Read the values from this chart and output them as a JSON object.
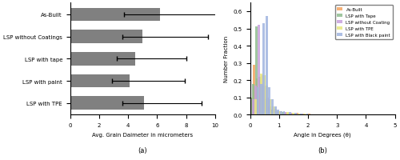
{
  "bar_labels": [
    "LSP with TPE",
    "LSP with paint",
    "LSP with tape",
    "LSP without Coatings",
    "As-Built"
  ],
  "bar_values": [
    5.1,
    4.1,
    4.5,
    5.0,
    6.2
  ],
  "bar_xerr_low": [
    1.5,
    1.2,
    1.3,
    1.4,
    2.5
  ],
  "bar_xerr_high": [
    4.0,
    3.8,
    3.5,
    4.5,
    4.0
  ],
  "bar_color": "#808080",
  "bar_xlabel": "Avg. Grain Daimeter in micrometers",
  "bar_sublabel": "(a)",
  "hist_xlabel": "Angle in Degrees (θ)",
  "hist_ylabel": "Number Fraction",
  "hist_sublabel": "(b)",
  "hist_legend_labels": [
    "As-Built",
    "LSP with Tape",
    "LSP without Coating",
    "LSP with TPE",
    "LSP with Black paint"
  ],
  "hist_colors": [
    "#f4a460",
    "#8fbc8f",
    "#c8a0dc",
    "#e8e880",
    "#a0b4e0"
  ],
  "hist_xlim": [
    0,
    5
  ],
  "hist_ylim": [
    0,
    0.65
  ],
  "hist_yticks": [
    0.0,
    0.1,
    0.2,
    0.3,
    0.4,
    0.5,
    0.6
  ],
  "hist_xticks": [
    0,
    1,
    2,
    3,
    4,
    5
  ],
  "hist_data": {
    "As-Built": {
      "x": [
        0.1,
        0.2,
        0.3,
        0.4,
        0.5,
        0.6,
        0.7,
        0.8,
        0.9,
        1.0,
        1.2,
        1.4,
        1.6,
        1.8,
        2.0,
        2.2,
        2.5,
        3.0
      ],
      "y": [
        0.09,
        0.1,
        0.29,
        0.21,
        0.2,
        0.12,
        0.08,
        0.04,
        0.03,
        0.02,
        0.02,
        0.01,
        0.01,
        0.01,
        0.005,
        0.005,
        0.003,
        0.002
      ]
    },
    "LSP with Tape": {
      "x": [
        0.1,
        0.2,
        0.3,
        0.4,
        0.5,
        0.6,
        0.7,
        0.8,
        0.9,
        1.0,
        1.2,
        1.4,
        1.6,
        1.8,
        2.0,
        2.2,
        2.5,
        3.0
      ],
      "y": [
        0.1,
        0.18,
        0.51,
        0.22,
        0.17,
        0.09,
        0.05,
        0.03,
        0.02,
        0.02,
        0.015,
        0.01,
        0.008,
        0.005,
        0.003,
        0.003,
        0.002,
        0.001
      ]
    },
    "LSP without Coating": {
      "x": [
        0.1,
        0.2,
        0.3,
        0.4,
        0.5,
        0.6,
        0.7,
        0.8,
        0.9,
        1.0,
        1.2,
        1.4,
        1.6,
        1.8,
        2.0,
        2.2,
        2.5,
        3.0
      ],
      "y": [
        0.09,
        0.17,
        0.52,
        0.23,
        0.17,
        0.1,
        0.05,
        0.03,
        0.02,
        0.02,
        0.015,
        0.01,
        0.008,
        0.005,
        0.003,
        0.003,
        0.002,
        0.001
      ]
    },
    "LSP with TPE": {
      "x": [
        0.1,
        0.2,
        0.3,
        0.4,
        0.5,
        0.6,
        0.7,
        0.8,
        0.9,
        1.0,
        1.2,
        1.4,
        1.6,
        1.8,
        2.0,
        2.2,
        2.5,
        3.0
      ],
      "y": [
        0.09,
        0.16,
        0.24,
        0.23,
        0.17,
        0.09,
        0.05,
        0.035,
        0.02,
        0.02,
        0.015,
        0.01,
        0.008,
        0.005,
        0.003,
        0.003,
        0.002,
        0.001
      ]
    },
    "LSP with Black paint": {
      "x": [
        0.1,
        0.2,
        0.3,
        0.4,
        0.5,
        0.6,
        0.7,
        0.8,
        0.9,
        1.0,
        1.2,
        1.4,
        1.6,
        1.8,
        2.0,
        2.2,
        2.5,
        3.0
      ],
      "y": [
        0.16,
        0.18,
        0.53,
        0.57,
        0.16,
        0.09,
        0.05,
        0.03,
        0.02,
        0.02,
        0.015,
        0.01,
        0.008,
        0.005,
        0.003,
        0.003,
        0.002,
        0.001
      ]
    }
  }
}
